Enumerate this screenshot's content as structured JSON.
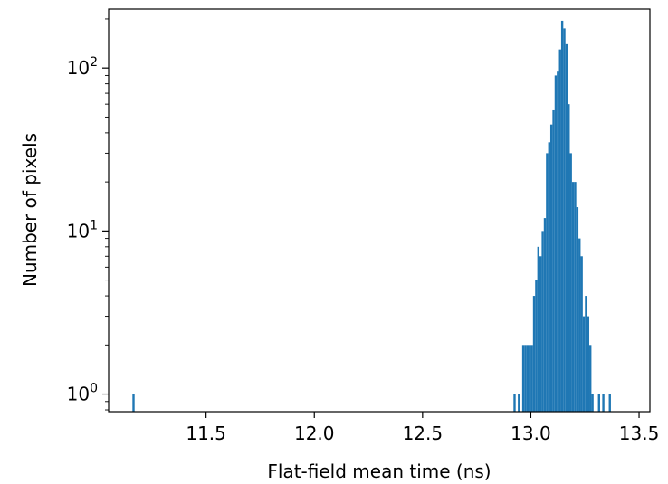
{
  "chart_data": {
    "type": "bar",
    "title": "",
    "xlabel": "Flat-field mean time (ns)",
    "ylabel": "Number of pixels",
    "xlim": [
      11.05,
      13.55
    ],
    "ylim": [
      0.78,
      230
    ],
    "yscale": "log",
    "bin_width": 0.01,
    "grid": false,
    "bar_color": "#1f77b4",
    "x_ticks": [
      {
        "value": 11.5,
        "label": "11.5"
      },
      {
        "value": 12.0,
        "label": "12.0"
      },
      {
        "value": 12.5,
        "label": "12.5"
      },
      {
        "value": 13.0,
        "label": "13.0"
      },
      {
        "value": 13.5,
        "label": "13.5"
      }
    ],
    "y_ticks": [
      {
        "value": 1,
        "base": "10",
        "exp": "0"
      },
      {
        "value": 10,
        "base": "10",
        "exp": "1"
      },
      {
        "value": 100,
        "base": "10",
        "exp": "2"
      }
    ],
    "bins": [
      {
        "x": 11.16,
        "count": 1
      },
      {
        "x": 12.92,
        "count": 1
      },
      {
        "x": 12.94,
        "count": 1
      },
      {
        "x": 12.96,
        "count": 2
      },
      {
        "x": 12.97,
        "count": 2
      },
      {
        "x": 12.98,
        "count": 2
      },
      {
        "x": 12.99,
        "count": 2
      },
      {
        "x": 13.0,
        "count": 2
      },
      {
        "x": 13.01,
        "count": 4
      },
      {
        "x": 13.02,
        "count": 5
      },
      {
        "x": 13.03,
        "count": 8
      },
      {
        "x": 13.04,
        "count": 7
      },
      {
        "x": 13.05,
        "count": 10
      },
      {
        "x": 13.06,
        "count": 12
      },
      {
        "x": 13.07,
        "count": 30
      },
      {
        "x": 13.08,
        "count": 35
      },
      {
        "x": 13.09,
        "count": 45
      },
      {
        "x": 13.1,
        "count": 55
      },
      {
        "x": 13.11,
        "count": 90
      },
      {
        "x": 13.12,
        "count": 95
      },
      {
        "x": 13.13,
        "count": 130
      },
      {
        "x": 13.14,
        "count": 195
      },
      {
        "x": 13.15,
        "count": 175
      },
      {
        "x": 13.16,
        "count": 140
      },
      {
        "x": 13.17,
        "count": 60
      },
      {
        "x": 13.18,
        "count": 30
      },
      {
        "x": 13.19,
        "count": 20
      },
      {
        "x": 13.2,
        "count": 20
      },
      {
        "x": 13.21,
        "count": 14
      },
      {
        "x": 13.22,
        "count": 9
      },
      {
        "x": 13.23,
        "count": 7
      },
      {
        "x": 13.24,
        "count": 3
      },
      {
        "x": 13.25,
        "count": 4
      },
      {
        "x": 13.26,
        "count": 3
      },
      {
        "x": 13.27,
        "count": 2
      },
      {
        "x": 13.28,
        "count": 1
      },
      {
        "x": 13.31,
        "count": 1
      },
      {
        "x": 13.33,
        "count": 1
      },
      {
        "x": 13.36,
        "count": 1
      }
    ]
  }
}
